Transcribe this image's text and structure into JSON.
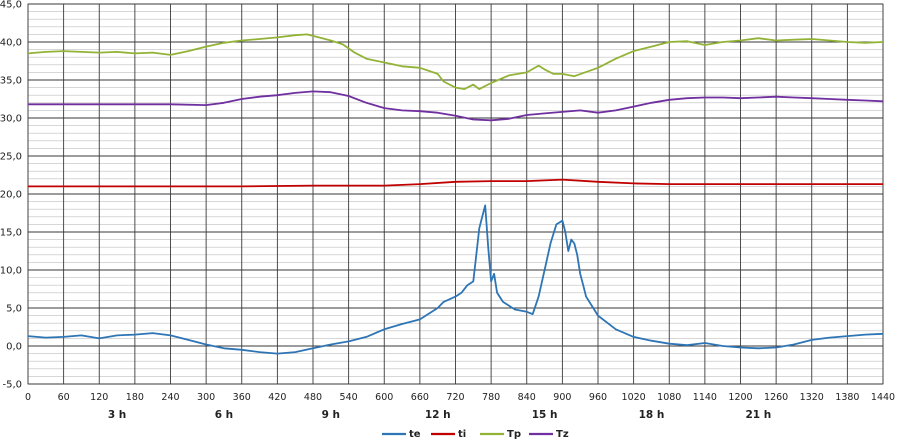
{
  "chart_data": {
    "type": "line",
    "title": "",
    "xlabel": "",
    "ylabel": "",
    "xlim": [
      0,
      1440
    ],
    "ylim": [
      -5,
      45
    ],
    "grid": true,
    "legend_position": "bottom",
    "y_ticks": [
      "-5,0",
      "0,0",
      "5,0",
      "10,0",
      "15,0",
      "20,0",
      "25,0",
      "30,0",
      "35,0",
      "40,0",
      "45,0"
    ],
    "y_tick_values": [
      -5,
      0,
      5,
      10,
      15,
      20,
      25,
      30,
      35,
      40,
      45
    ],
    "x_ticks": [
      0,
      60,
      120,
      180,
      240,
      300,
      360,
      420,
      480,
      540,
      600,
      660,
      720,
      780,
      840,
      900,
      960,
      1020,
      1080,
      1140,
      1200,
      1260,
      1320,
      1380,
      1440
    ],
    "hour_labels": [
      {
        "x": 150,
        "label": "3 h"
      },
      {
        "x": 330,
        "label": "6 h"
      },
      {
        "x": 510,
        "label": "9 h"
      },
      {
        "x": 690,
        "label": "12 h"
      },
      {
        "x": 870,
        "label": "15 h"
      },
      {
        "x": 1050,
        "label": "18 h"
      },
      {
        "x": 1230,
        "label": "21 h"
      }
    ],
    "series": [
      {
        "name": "te",
        "color": "#2e75b6",
        "x": [
          0,
          30,
          60,
          90,
          120,
          150,
          180,
          210,
          240,
          270,
          300,
          330,
          360,
          390,
          420,
          450,
          480,
          510,
          540,
          570,
          600,
          630,
          660,
          690,
          700,
          720,
          730,
          740,
          750,
          760,
          765,
          770,
          775,
          780,
          785,
          790,
          800,
          820,
          840,
          850,
          860,
          870,
          880,
          890,
          900,
          905,
          910,
          915,
          920,
          925,
          930,
          935,
          940,
          960,
          990,
          1020,
          1050,
          1080,
          1110,
          1140,
          1170,
          1200,
          1230,
          1260,
          1290,
          1320,
          1350,
          1380,
          1410,
          1440
        ],
        "y": [
          1.3,
          1.1,
          1.2,
          1.4,
          1.0,
          1.4,
          1.5,
          1.7,
          1.4,
          0.8,
          0.2,
          -0.3,
          -0.5,
          -0.8,
          -1.0,
          -0.8,
          -0.3,
          0.2,
          0.6,
          1.2,
          2.2,
          2.9,
          3.5,
          5.0,
          5.8,
          6.5,
          7.0,
          8.0,
          8.5,
          15.5,
          17.0,
          18.5,
          13.0,
          8.5,
          9.5,
          7.0,
          5.8,
          4.8,
          4.5,
          4.2,
          6.5,
          10.0,
          13.5,
          16.0,
          16.5,
          15.0,
          12.5,
          14.0,
          13.5,
          12.0,
          9.5,
          8.0,
          6.5,
          4.0,
          2.2,
          1.2,
          0.7,
          0.3,
          0.1,
          0.4,
          0.0,
          -0.2,
          -0.3,
          -0.2,
          0.2,
          0.8,
          1.1,
          1.3,
          1.5,
          1.6
        ]
      },
      {
        "name": "ti",
        "color": "#c00000",
        "x": [
          0,
          120,
          240,
          360,
          480,
          540,
          600,
          660,
          720,
          780,
          840,
          900,
          960,
          1020,
          1080,
          1200,
          1320,
          1440
        ],
        "y": [
          21.0,
          21.0,
          21.0,
          21.0,
          21.1,
          21.1,
          21.1,
          21.3,
          21.6,
          21.7,
          21.7,
          21.9,
          21.6,
          21.4,
          21.3,
          21.3,
          21.3,
          21.3
        ]
      },
      {
        "name": "Tp",
        "color": "#92b336",
        "x": [
          0,
          30,
          60,
          90,
          120,
          150,
          180,
          210,
          240,
          270,
          300,
          330,
          360,
          390,
          420,
          450,
          470,
          490,
          510,
          530,
          550,
          570,
          600,
          630,
          660,
          690,
          700,
          720,
          735,
          750,
          760,
          780,
          810,
          840,
          860,
          870,
          885,
          900,
          920,
          960,
          990,
          1020,
          1050,
          1080,
          1110,
          1140,
          1170,
          1200,
          1230,
          1260,
          1290,
          1320,
          1350,
          1380,
          1410,
          1440
        ],
        "y": [
          38.5,
          38.7,
          38.8,
          38.7,
          38.6,
          38.7,
          38.5,
          38.6,
          38.3,
          38.8,
          39.4,
          39.9,
          40.2,
          40.4,
          40.6,
          40.9,
          41.0,
          40.6,
          40.2,
          39.7,
          38.6,
          37.8,
          37.3,
          36.8,
          36.6,
          35.8,
          34.8,
          34.0,
          33.8,
          34.4,
          33.8,
          34.6,
          35.6,
          36.0,
          36.9,
          36.4,
          35.8,
          35.8,
          35.5,
          36.6,
          37.8,
          38.8,
          39.4,
          40.0,
          40.1,
          39.6,
          40.0,
          40.2,
          40.5,
          40.2,
          40.3,
          40.4,
          40.2,
          40.0,
          39.9,
          40.0
        ]
      },
      {
        "name": "Tz",
        "color": "#7030a0",
        "x": [
          0,
          60,
          120,
          180,
          240,
          300,
          330,
          360,
          390,
          420,
          450,
          480,
          510,
          540,
          570,
          600,
          630,
          660,
          690,
          720,
          750,
          780,
          810,
          840,
          870,
          900,
          930,
          960,
          990,
          1020,
          1050,
          1080,
          1110,
          1140,
          1170,
          1200,
          1230,
          1260,
          1290,
          1320,
          1350,
          1380,
          1410,
          1440
        ],
        "y": [
          31.8,
          31.8,
          31.8,
          31.8,
          31.8,
          31.7,
          32.0,
          32.5,
          32.8,
          33.0,
          33.3,
          33.5,
          33.4,
          32.9,
          32.0,
          31.3,
          31.0,
          30.9,
          30.7,
          30.3,
          29.8,
          29.7,
          29.9,
          30.4,
          30.6,
          30.8,
          31.0,
          30.7,
          31.0,
          31.5,
          32.0,
          32.4,
          32.6,
          32.7,
          32.7,
          32.6,
          32.7,
          32.8,
          32.7,
          32.6,
          32.5,
          32.4,
          32.3,
          32.2
        ]
      }
    ]
  }
}
